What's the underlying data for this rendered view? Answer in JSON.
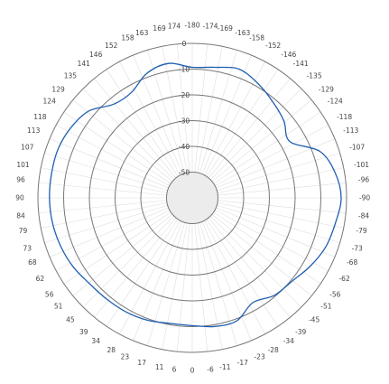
{
  "chart_data": {
    "type": "polar-line",
    "title": "",
    "angle_tick_labels": [
      "-180",
      "-174",
      "-169",
      "-163",
      "-158",
      "-152",
      "-146",
      "-141",
      "-135",
      "-129",
      "-124",
      "-118",
      "-113",
      "-107",
      "-101",
      "-96",
      "-90",
      "-84",
      "-79",
      "-73",
      "-68",
      "-62",
      "-56",
      "-51",
      "-45",
      "-39",
      "-34",
      "-28",
      "-23",
      "-17",
      "-11",
      "-6",
      "0",
      "6",
      "11",
      "17",
      "23",
      "28",
      "34",
      "39",
      "45",
      "51",
      "56",
      "62",
      "68",
      "73",
      "79",
      "84",
      "90",
      "96",
      "101",
      "107",
      "113",
      "118",
      "124",
      "129",
      "135",
      "141",
      "146",
      "152",
      "158",
      "163",
      "169",
      "174"
    ],
    "angle_tick_step_deg": 5.625,
    "angle_orientation": "0 at bottom, negative angles on the right side, -180 at top",
    "radial_axis": {
      "min": -60,
      "max": 0,
      "ring_values": [
        -50,
        -40,
        -30,
        -20,
        -10,
        0
      ],
      "ring_labels": [
        "-50",
        "-40",
        "-30",
        "-20",
        "-10",
        "0"
      ],
      "inner_disc_below": -50
    },
    "grid": true,
    "series": [
      {
        "color": "#1f5fb0",
        "angle_deg": [
          -180,
          -170,
          -160,
          -150,
          -140,
          -130,
          -120,
          -110,
          -100,
          -90,
          -80,
          -70,
          -60,
          -50,
          -40,
          -30,
          -20,
          -10,
          0,
          10,
          20,
          30,
          40,
          50,
          60,
          70,
          80,
          90,
          100,
          110,
          120,
          130,
          140,
          150,
          160,
          170,
          180
        ],
        "value": [
          -9.3,
          -8.5,
          -6.8,
          -8.8,
          -11.3,
          -13.5,
          -16.2,
          -7.2,
          -3.6,
          -2.1,
          -3.5,
          -4.7,
          -7.0,
          -9.5,
          -10.5,
          -13.0,
          -9.2,
          -9.3,
          -10.4,
          -10.5,
          -9.4,
          -8.8,
          -8.5,
          -8.0,
          -6.5,
          -5.5,
          -4.8,
          -4.5,
          -4.5,
          -4.5,
          -5.5,
          -7.5,
          -12.5,
          -12.7,
          -8.5,
          -7.0,
          -9.3
        ]
      }
    ]
  }
}
